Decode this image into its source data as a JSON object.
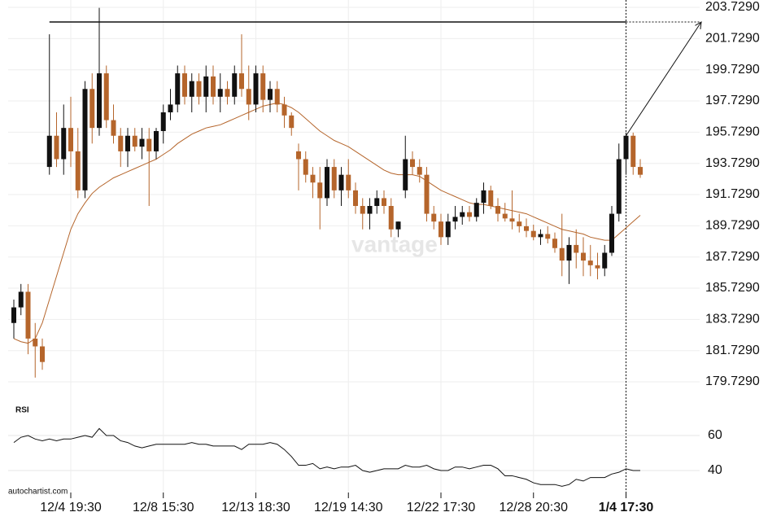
{
  "chart_data": {
    "type": "candlestick",
    "categories": [
      null,
      null,
      null,
      null,
      null,
      null,
      null,
      null,
      "12/4 19:30",
      null,
      null,
      null,
      null,
      null,
      null,
      null,
      null,
      null,
      null,
      null,
      null,
      "12/8 15:30",
      null,
      null,
      null,
      null,
      null,
      null,
      null,
      null,
      null,
      null,
      null,
      null,
      "12/13 18:30",
      null,
      null,
      null,
      null,
      null,
      null,
      null,
      null,
      null,
      null,
      null,
      null,
      "12/19 14:30",
      null,
      null,
      null,
      null,
      null,
      null,
      null,
      null,
      null,
      null,
      null,
      null,
      "12/22 17:30",
      null,
      null,
      null,
      null,
      null,
      null,
      null,
      null,
      null,
      null,
      null,
      null,
      "12/28 20:30",
      null,
      null,
      null,
      null,
      null,
      null,
      null,
      null,
      null,
      null,
      null,
      null,
      "1/4 17:30",
      null,
      null
    ],
    "open": [
      183.5,
      184.5,
      185.5,
      182.5,
      182,
      193.5,
      195.5,
      194,
      196,
      194.5,
      192,
      198.5,
      196,
      199.5,
      196.5,
      195.5,
      194.5,
      195.5,
      194.8,
      195.3,
      194.5,
      195.8,
      197,
      197.5,
      199.5,
      198,
      199,
      198,
      199.3,
      198,
      198.5,
      198,
      199.5,
      198.5,
      197.5,
      199.5,
      197.8,
      198.5,
      197.5,
      196.8,
      194.5,
      194,
      193,
      192.5,
      191.5,
      193.5,
      192,
      193,
      192,
      191,
      190.5,
      191,
      191.5,
      191,
      189.5,
      192,
      194,
      193.5,
      193,
      190.5,
      190,
      189,
      190,
      190.3,
      190.6,
      190.3,
      191.2,
      192,
      191,
      190.5,
      190.2,
      190,
      189.7,
      189.4,
      189,
      189.2,
      188.9,
      188.3,
      187.5,
      188.5,
      188,
      187.5,
      187.2,
      187,
      188,
      190.5,
      194,
      195.5,
      193.5
    ],
    "high": [
      185,
      186,
      186,
      183.5,
      182.5,
      202,
      197,
      197.5,
      198,
      196,
      199,
      199.5,
      203.7,
      200,
      197.5,
      196,
      196,
      196,
      196,
      196,
      196,
      197.5,
      198.5,
      200,
      200,
      199.5,
      199.5,
      200,
      200,
      199.5,
      199,
      200,
      202,
      200,
      200,
      200,
      199,
      199,
      198,
      197,
      195,
      194.5,
      193.5,
      193.5,
      194,
      194,
      193.5,
      194,
      192.5,
      191.5,
      191.5,
      192,
      192,
      191.5,
      190,
      195.5,
      194.5,
      194,
      193.5,
      191,
      190.5,
      190.5,
      191,
      191,
      191,
      191.5,
      192.5,
      192.3,
      191.5,
      191.2,
      192,
      190.5,
      190.2,
      189.8,
      189.5,
      189.7,
      189.3,
      190.5,
      189,
      189.5,
      189,
      188.5,
      188,
      188.5,
      191,
      195,
      195.7,
      195.7,
      194
    ],
    "low": [
      182.5,
      184,
      181.5,
      180,
      180.5,
      193,
      193.5,
      193,
      193.5,
      191.5,
      191.5,
      195,
      195.5,
      196,
      195,
      193.5,
      193.5,
      194.5,
      194,
      191,
      194,
      195,
      196.5,
      197,
      197.5,
      197,
      197.5,
      197,
      197.5,
      197,
      197.5,
      197.5,
      198,
      196.5,
      197,
      197,
      197,
      197,
      196,
      195.5,
      192,
      192.5,
      191.5,
      189.5,
      191,
      191.5,
      191,
      191.5,
      190.5,
      189.5,
      189.5,
      190.5,
      190.5,
      189,
      189,
      191.5,
      193,
      192.5,
      190,
      189.5,
      188.5,
      188.5,
      189.5,
      189.8,
      190,
      190,
      190.5,
      190.8,
      190,
      190,
      189.5,
      189.3,
      189,
      188.8,
      188.5,
      188.6,
      188,
      186.5,
      186,
      187,
      186.5,
      186.5,
      186.3,
      186.5,
      187.8,
      190,
      193,
      193,
      192.8
    ],
    "close": [
      184.5,
      185.5,
      182.5,
      182,
      181,
      195.5,
      194,
      196,
      194.5,
      192,
      198.5,
      196,
      199.5,
      196.5,
      195.5,
      194.5,
      195.5,
      194.8,
      195.3,
      194.5,
      195.8,
      197,
      197.5,
      199.5,
      198,
      199,
      198,
      199.3,
      198,
      198.5,
      198,
      199.5,
      198.5,
      197.5,
      199.5,
      197.8,
      198.5,
      197.5,
      196.8,
      196,
      194,
      193,
      192.5,
      191.5,
      193.5,
      192,
      193,
      192,
      191,
      190.5,
      191,
      191.5,
      191,
      189.5,
      190,
      194,
      193.5,
      193,
      190.5,
      190,
      189,
      190,
      190.3,
      190.6,
      190.3,
      191.2,
      192,
      191,
      190.5,
      190.2,
      190,
      189.7,
      189.4,
      189,
      189.2,
      188.9,
      188.3,
      187.5,
      188.5,
      188,
      187.5,
      187.2,
      187,
      188,
      190.5,
      194,
      195.5,
      193.5,
      193
    ],
    "up_color": "#111111",
    "down_color": "#b5652b",
    "ylim": [
      179,
      204.2
    ],
    "yticks": [
      {
        "value": 203.729,
        "label": "203.7290"
      },
      {
        "value": 201.729,
        "label": "201.7290"
      },
      {
        "value": 199.729,
        "label": "199.7290"
      },
      {
        "value": 197.729,
        "label": "197.7290"
      },
      {
        "value": 195.729,
        "label": "195.7290"
      },
      {
        "value": 193.729,
        "label": "193.7290"
      },
      {
        "value": 191.729,
        "label": "191.7290"
      },
      {
        "value": 189.729,
        "label": "189.7290"
      },
      {
        "value": 187.729,
        "label": "187.7290"
      },
      {
        "value": 185.729,
        "label": "185.7290"
      },
      {
        "value": 183.729,
        "label": "183.7290"
      },
      {
        "value": 181.729,
        "label": "181.7290"
      },
      {
        "value": 179.729,
        "label": "179.7290"
      }
    ],
    "grid": true,
    "level": 202.79,
    "ma": {
      "color": "#b5652b",
      "values": [
        182.5,
        182.3,
        182.2,
        182.5,
        183.5,
        185,
        186.5,
        188,
        189.5,
        190.5,
        191.2,
        191.8,
        192.2,
        192.5,
        192.8,
        193,
        193.2,
        193.4,
        193.6,
        193.8,
        194,
        194.3,
        194.6,
        195,
        195.3,
        195.6,
        195.8,
        196,
        196.1,
        196.2,
        196.4,
        196.6,
        196.8,
        197,
        197.2,
        197.4,
        197.5,
        197.6,
        197.5,
        197.3,
        197,
        196.6,
        196.2,
        195.8,
        195.5,
        195.2,
        195,
        194.8,
        194.5,
        194.2,
        193.9,
        193.6,
        193.3,
        193.1,
        193,
        193,
        193,
        192.9,
        192.6,
        192.3,
        192,
        191.8,
        191.6,
        191.4,
        191.2,
        191.1,
        191.1,
        191,
        190.9,
        190.8,
        190.7,
        190.6,
        190.5,
        190.3,
        190.1,
        189.9,
        189.7,
        189.5,
        189.4,
        189.3,
        189.2,
        189,
        188.9,
        188.8,
        188.8,
        189.2,
        189.6,
        190,
        190.4
      ]
    },
    "rsi": {
      "label": "RSI",
      "color": "#111111",
      "ylim": [
        30,
        70
      ],
      "yticks": [
        60,
        40
      ],
      "values": [
        56,
        59,
        60,
        58,
        57,
        58,
        57,
        58,
        58,
        59,
        60,
        59,
        64,
        60,
        60,
        57,
        56,
        54,
        53,
        54,
        55,
        55,
        55,
        55,
        55,
        56,
        55,
        55,
        54,
        54,
        54,
        54,
        52,
        55,
        55,
        55,
        56,
        55,
        52,
        48,
        43,
        43,
        44,
        41,
        42,
        41,
        42,
        42,
        43,
        40,
        39,
        40,
        41,
        41,
        41,
        43,
        42,
        42,
        43,
        41,
        40,
        40,
        42,
        42,
        41,
        42,
        43,
        43,
        41,
        37,
        37,
        36,
        35,
        33,
        32,
        32,
        32,
        31,
        32,
        35,
        34,
        36,
        36,
        36,
        38,
        39,
        41,
        40,
        40
      ]
    },
    "watermark": "vantage",
    "source": "autochartist.com"
  }
}
